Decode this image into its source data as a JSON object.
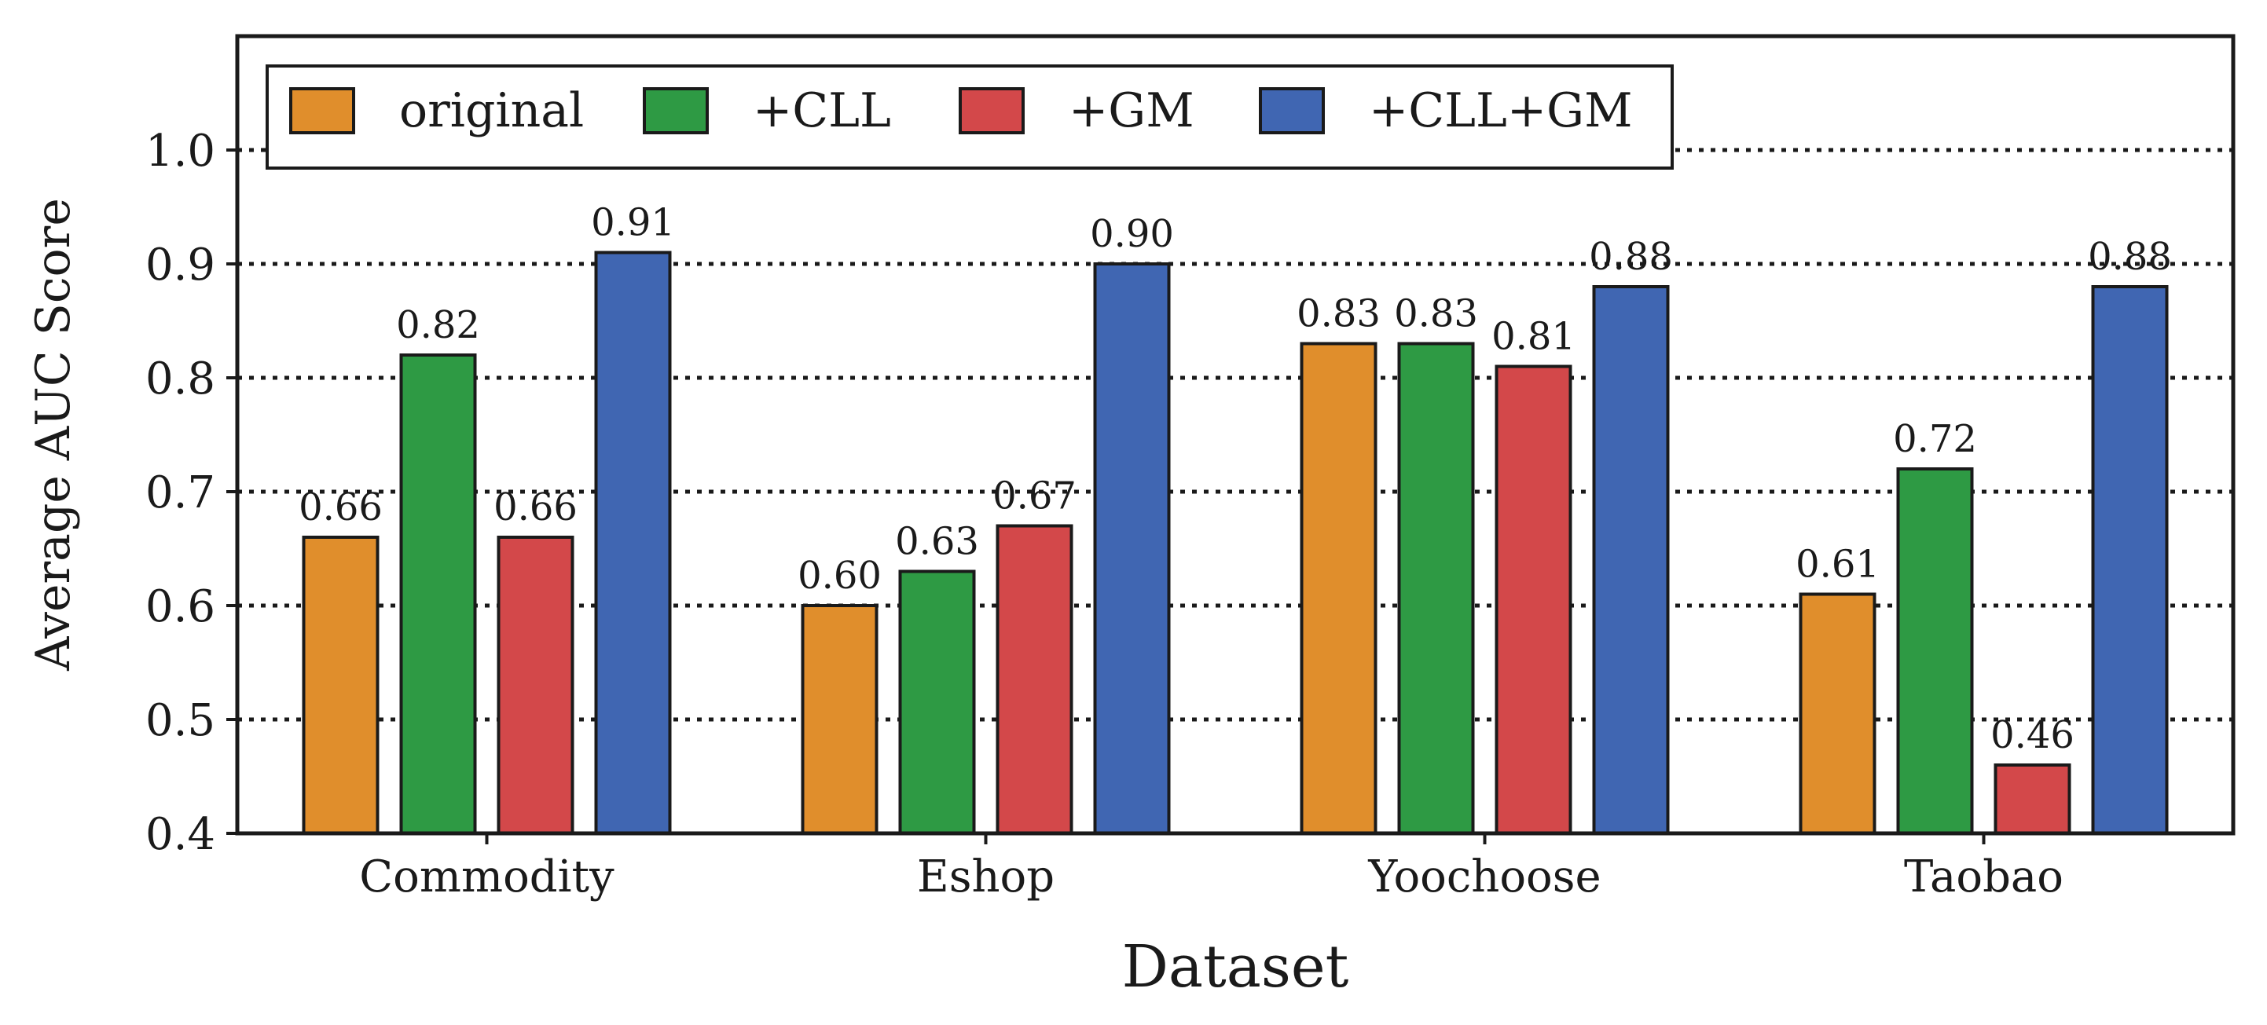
{
  "chart_data": {
    "type": "bar",
    "title": "",
    "xlabel": "Dataset",
    "ylabel": "Average AUC Score",
    "categories": [
      "Commodity",
      "Eshop",
      "Yoochoose",
      "Taobao"
    ],
    "series": [
      {
        "name": "original",
        "color": "#E08E2C",
        "values": [
          0.66,
          0.6,
          0.83,
          0.61
        ],
        "labels": [
          "0.66",
          "0.60",
          "0.83",
          "0.61"
        ]
      },
      {
        "name": "+CLL",
        "color": "#2E9A44",
        "values": [
          0.82,
          0.63,
          0.83,
          0.72
        ],
        "labels": [
          "0.82",
          "0.63",
          "0.83",
          "0.72"
        ]
      },
      {
        "name": "+GM",
        "color": "#D3484A",
        "values": [
          0.66,
          0.67,
          0.81,
          0.46
        ],
        "labels": [
          "0.66",
          "0.67",
          "0.81",
          "0.46"
        ]
      },
      {
        "name": "+CLL+GM",
        "color": "#4066B2",
        "values": [
          0.91,
          0.9,
          0.88,
          0.88
        ],
        "labels": [
          "0.91",
          "0.90",
          "0.88",
          "0.88"
        ]
      }
    ],
    "ylim": [
      0.4,
      1.1
    ],
    "yticks": [
      0.4,
      0.5,
      0.6,
      0.7,
      0.8,
      0.9,
      1.0
    ],
    "ytick_labels": [
      "0.4",
      "0.5",
      "0.6",
      "0.7",
      "0.8",
      "0.9",
      "1.0"
    ],
    "grid": "horizontal dotted",
    "legend_position": "top-left"
  }
}
